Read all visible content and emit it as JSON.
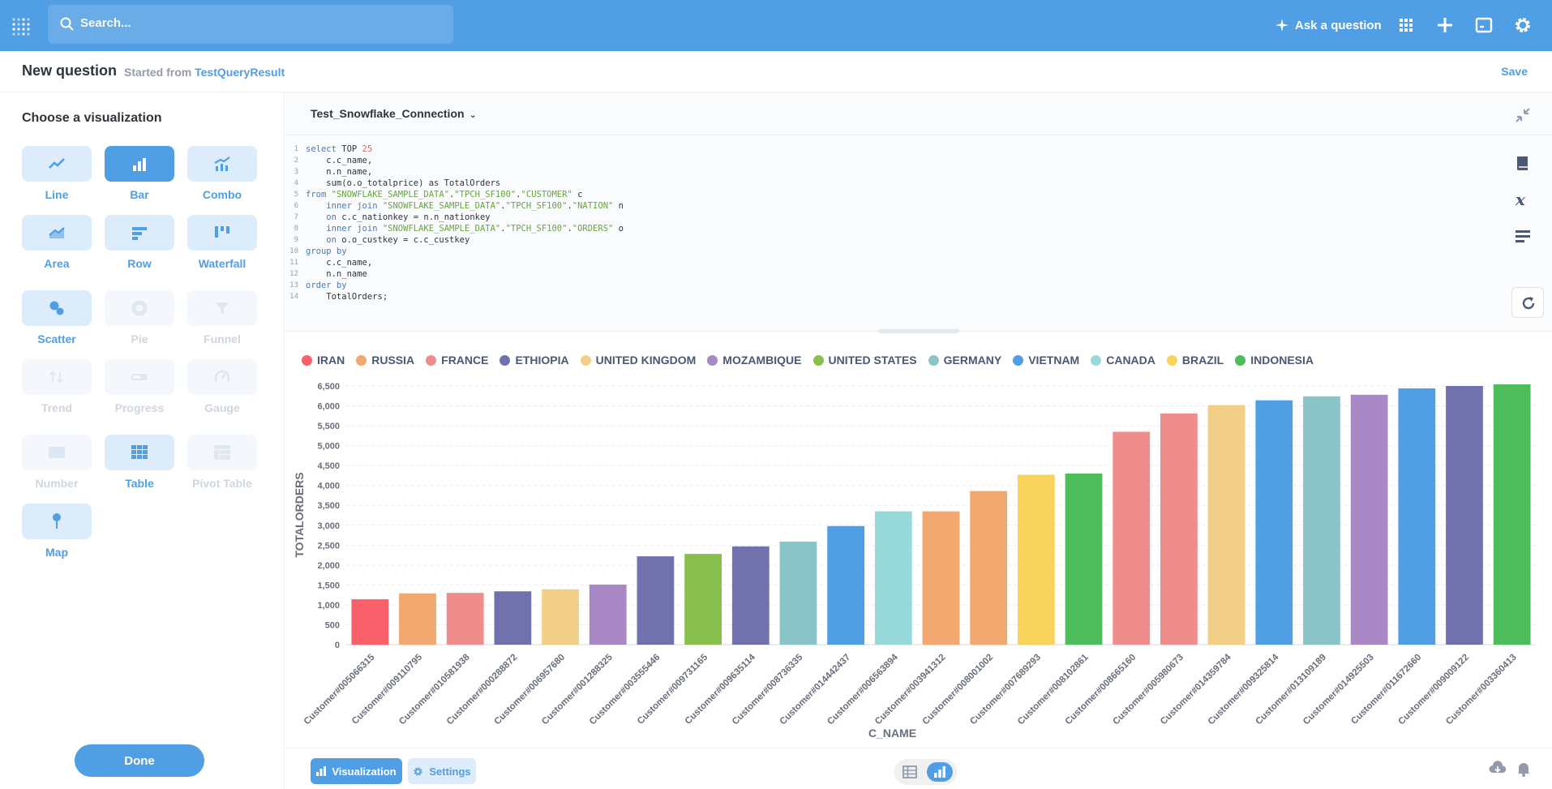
{
  "nav": {
    "search_placeholder": "Search...",
    "ask_label": "Ask a question"
  },
  "header": {
    "title": "New question",
    "started_from": "Started from",
    "source": "TestQueryResult",
    "save_label": "Save"
  },
  "sidebar": {
    "heading": "Choose a visualization",
    "items": [
      {
        "label": "Line",
        "icon": "line-chart-icon",
        "state": "enabled"
      },
      {
        "label": "Bar",
        "icon": "bar-chart-icon",
        "state": "selected"
      },
      {
        "label": "Combo",
        "icon": "combo-chart-icon",
        "state": "enabled"
      },
      {
        "label": "Area",
        "icon": "area-chart-icon",
        "state": "enabled"
      },
      {
        "label": "Row",
        "icon": "row-chart-icon",
        "state": "enabled"
      },
      {
        "label": "Waterfall",
        "icon": "waterfall-chart-icon",
        "state": "enabled"
      },
      {
        "label": "Scatter",
        "icon": "scatter-chart-icon",
        "state": "enabled"
      },
      {
        "label": "Pie",
        "icon": "pie-chart-icon",
        "state": "disabled"
      },
      {
        "label": "Funnel",
        "icon": "funnel-icon",
        "state": "disabled"
      },
      {
        "label": "Trend",
        "icon": "trend-icon",
        "state": "disabled"
      },
      {
        "label": "Progress",
        "icon": "progress-icon",
        "state": "disabled"
      },
      {
        "label": "Gauge",
        "icon": "gauge-icon",
        "state": "disabled"
      },
      {
        "label": "Number",
        "icon": "number-icon",
        "state": "disabled"
      },
      {
        "label": "Table",
        "icon": "table-icon",
        "state": "enabled"
      },
      {
        "label": "Pivot Table",
        "icon": "pivot-table-icon",
        "state": "disabled"
      },
      {
        "label": "Map",
        "icon": "map-pin-icon",
        "state": "enabled"
      }
    ],
    "done_label": "Done"
  },
  "editor": {
    "database": "Test_Snowflake_Connection",
    "lines": [
      "select TOP 25",
      "    c.c_name,",
      "    n.n_name,",
      "    sum(o.o_totalprice) as TotalOrders",
      "from \"SNOWFLAKE_SAMPLE_DATA\".\"TPCH_SF100\".\"CUSTOMER\" c",
      "    inner join \"SNOWFLAKE_SAMPLE_DATA\".\"TPCH_SF100\".\"NATION\" n",
      "    on c.c_nationkey = n.n_nationkey",
      "    inner join \"SNOWFLAKE_SAMPLE_DATA\".\"TPCH_SF100\".\"ORDERS\" o",
      "    on o.o_custkey = c.c_custkey",
      "group by",
      "    c.c_name,",
      "    n.n_name",
      "order by",
      "    TotalOrders;"
    ]
  },
  "bottom": {
    "visualization_label": "Visualization",
    "settings_label": "Settings"
  },
  "colors": {
    "brand": "#509ee3"
  },
  "chart_data": {
    "type": "bar",
    "xlabel": "C_NAME",
    "ylabel": "TOTALORDERS",
    "ylim": [
      0,
      6500
    ],
    "yticks": [
      0,
      500,
      1000,
      1500,
      2000,
      2500,
      3000,
      3500,
      4000,
      4500,
      5000,
      5500,
      6000,
      6500
    ],
    "ytick_labels": [
      "0",
      "500",
      "1,000",
      "1,500",
      "2,000",
      "2,500",
      "3,000",
      "3,500",
      "4,000",
      "4,500",
      "5,000",
      "5,500",
      "6,000",
      "6,500"
    ],
    "grid": true,
    "legend_position": "top",
    "legend": [
      {
        "name": "IRAN",
        "color": "#f9606b"
      },
      {
        "name": "RUSSIA",
        "color": "#f2a86f"
      },
      {
        "name": "FRANCE",
        "color": "#ef8c8c"
      },
      {
        "name": "ETHIOPIA",
        "color": "#7172ad"
      },
      {
        "name": "UNITED KINGDOM",
        "color": "#f2cf87"
      },
      {
        "name": "MOZAMBIQUE",
        "color": "#a989c5"
      },
      {
        "name": "UNITED STATES",
        "color": "#88bf4d"
      },
      {
        "name": "GERMANY",
        "color": "#8bc4c7"
      },
      {
        "name": "VIETNAM",
        "color": "#509ee3"
      },
      {
        "name": "CANADA",
        "color": "#98d9d9"
      },
      {
        "name": "BRAZIL",
        "color": "#f9d45c"
      },
      {
        "name": "INDONESIA",
        "color": "#4cbd5a"
      }
    ],
    "categories": [
      "Customer#005066315",
      "Customer#009110795",
      "Customer#010581938",
      "Customer#000288872",
      "Customer#006957680",
      "Customer#001288325",
      "Customer#003555446",
      "Customer#009731165",
      "Customer#009635114",
      "Customer#008736335",
      "Customer#014442437",
      "Customer#006563894",
      "Customer#003941312",
      "Customer#008001002",
      "Customer#007689293",
      "Customer#008102861",
      "Customer#008665160",
      "Customer#005980673",
      "Customer#014359784",
      "Customer#009325814",
      "Customer#013109189",
      "Customer#014925503",
      "Customer#011672660",
      "Customer#009009122",
      "Customer#003360413"
    ],
    "values": [
      1140,
      1290,
      1300,
      1340,
      1390,
      1510,
      2220,
      2280,
      2470,
      2590,
      2980,
      3350,
      3350,
      3860,
      4270,
      4300,
      5350,
      5810,
      6020,
      6140,
      6240,
      6280,
      6440,
      6500,
      6540
    ],
    "nations": [
      "IRAN",
      "RUSSIA",
      "FRANCE",
      "ETHIOPIA",
      "UNITED KINGDOM",
      "MOZAMBIQUE",
      "ETHIOPIA",
      "UNITED STATES",
      "ETHIOPIA",
      "GERMANY",
      "VIETNAM",
      "CANADA",
      "RUSSIA",
      "RUSSIA",
      "BRAZIL",
      "INDONESIA",
      "FRANCE",
      "FRANCE",
      "UNITED KINGDOM",
      "VIETNAM",
      "GERMANY",
      "MOZAMBIQUE",
      "VIETNAM",
      "ETHIOPIA",
      "INDONESIA"
    ]
  }
}
